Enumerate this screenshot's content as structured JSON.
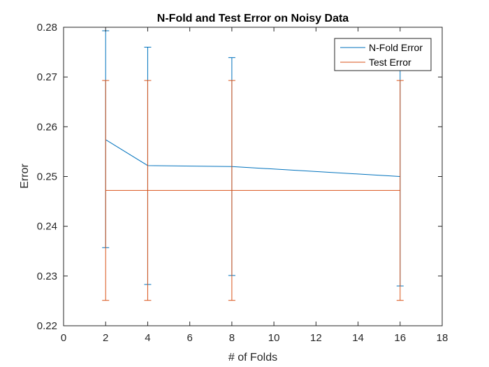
{
  "chart_data": {
    "type": "line",
    "title": "N-Fold and Test Error on Noisy Data",
    "xlabel": "# of Folds",
    "ylabel": "Error",
    "xlim": [
      0,
      18
    ],
    "ylim": [
      0.22,
      0.28
    ],
    "xticks": [
      "0",
      "2",
      "4",
      "6",
      "8",
      "10",
      "12",
      "14",
      "16",
      "18"
    ],
    "yticks": [
      "0.22",
      "0.23",
      "0.24",
      "0.25",
      "0.26",
      "0.27",
      "0.28"
    ],
    "grid": false,
    "legend_position": "top-right",
    "x": [
      2,
      4,
      8,
      16
    ],
    "series": [
      {
        "name": "N-Fold Error",
        "color": "#0072BD",
        "values": [
          0.2574,
          0.2522,
          0.252,
          0.25
        ],
        "error_low": [
          0.2357,
          0.2283,
          0.2301,
          0.228
        ],
        "error_high": [
          0.2793,
          0.276,
          0.2739,
          0.272
        ]
      },
      {
        "name": "Test Error",
        "color": "#D95319",
        "values": [
          0.2472,
          0.2472,
          0.2472,
          0.2472
        ],
        "error_low": [
          0.2251,
          0.2251,
          0.2251,
          0.2251
        ],
        "error_high": [
          0.2693,
          0.2693,
          0.2693,
          0.2693
        ]
      }
    ]
  }
}
